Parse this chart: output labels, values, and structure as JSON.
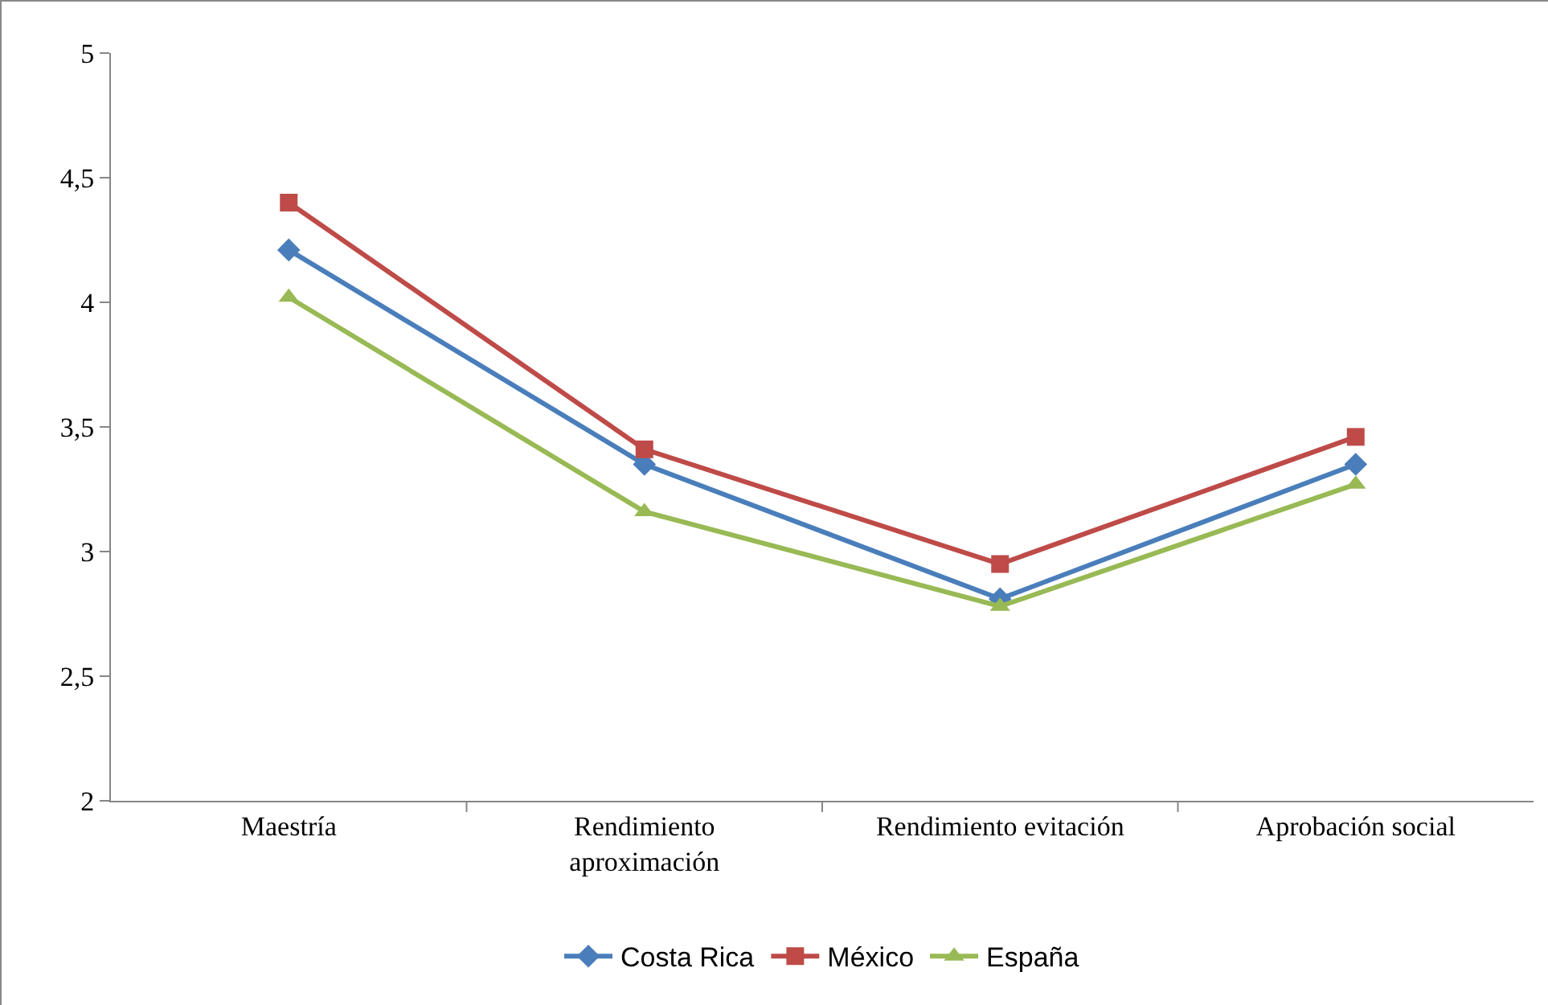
{
  "chart_data": {
    "type": "line",
    "categories": [
      "Maestría",
      "Rendimiento aproximación",
      "Rendimiento evitación",
      "Aprobación social"
    ],
    "series": [
      {
        "name": "Costa Rica",
        "color": "#4a7ebb",
        "marker": "diamond",
        "values": [
          4.21,
          3.35,
          2.81,
          3.35
        ]
      },
      {
        "name": "México",
        "color": "#be4b48",
        "marker": "square",
        "values": [
          4.4,
          3.41,
          2.95,
          3.46
        ]
      },
      {
        "name": "España",
        "color": "#98b954",
        "marker": "triangle",
        "values": [
          4.02,
          3.16,
          2.78,
          3.27
        ]
      }
    ],
    "ylim": [
      2,
      5
    ],
    "yticks": [
      2,
      {
        "value": 2.5,
        "label": "2,5"
      },
      3,
      {
        "value": 3.5,
        "label": "3,5"
      },
      4,
      {
        "value": 4.5,
        "label": "4,5"
      },
      5
    ],
    "grid": false,
    "legend": "bottom",
    "line_style": "solid"
  }
}
